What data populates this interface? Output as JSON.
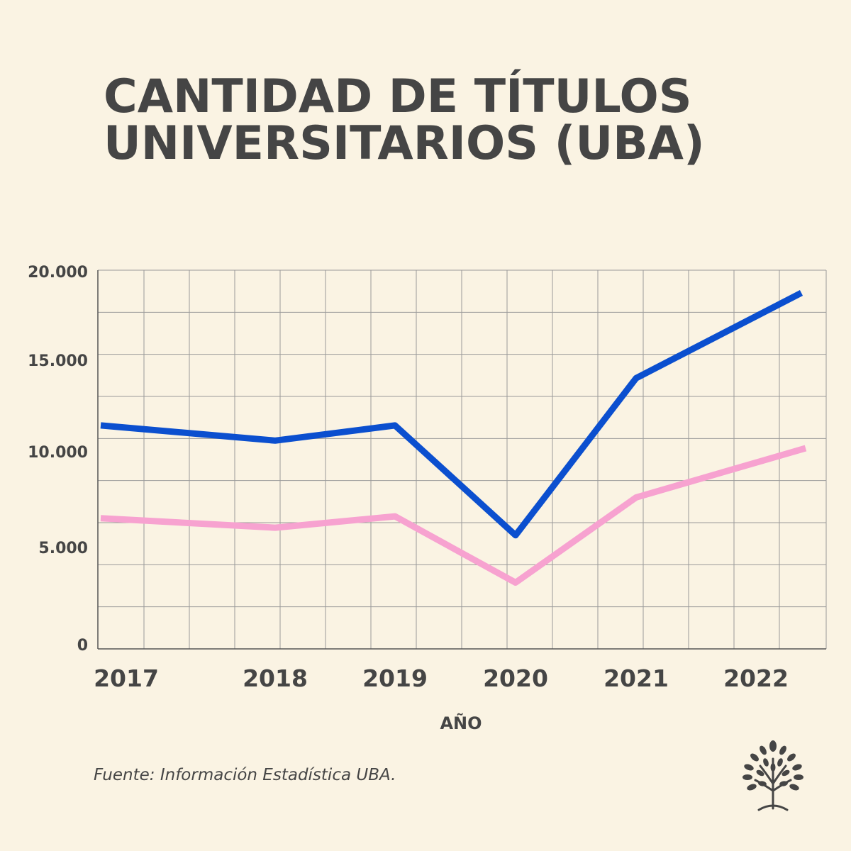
{
  "title_lines": [
    "CANTIDAD DE TÍTULOS",
    "UNIVERSITARIOS (UBA)"
  ],
  "source_note": "Fuente: Información Estadística UBA.",
  "logo_icon": "tree-icon",
  "colors": {
    "background": "#faf3e3",
    "text": "#454545",
    "grid": "#9a9a9a",
    "series_blue": "#0b4fcf",
    "series_pink": "#f7a2d0"
  },
  "chart_data": {
    "type": "line",
    "title": "CANTIDAD DE TÍTULOS UNIVERSITARIOS (UBA)",
    "xlabel": "AÑO",
    "ylabel": "",
    "categories": [
      "2017",
      "2018",
      "2019",
      "2020",
      "2021",
      "2022"
    ],
    "y_ticks": [
      "20.000",
      "15.000",
      "10.000",
      "5.000",
      "0"
    ],
    "ylim": [
      0,
      20000
    ],
    "grid": true,
    "legend": "none",
    "series": [
      {
        "color": "#0b4fcf",
        "x": [
          2017,
          2018,
          2019,
          2020,
          2021,
          2022
        ],
        "values": [
          11800,
          11000,
          11800,
          6000,
          14300,
          18800
        ]
      },
      {
        "color": "#f7a2d0",
        "x": [
          2017,
          2018,
          2019,
          2020,
          2021,
          2022
        ],
        "values": [
          6900,
          6400,
          7000,
          3500,
          8000,
          10600
        ]
      }
    ]
  }
}
